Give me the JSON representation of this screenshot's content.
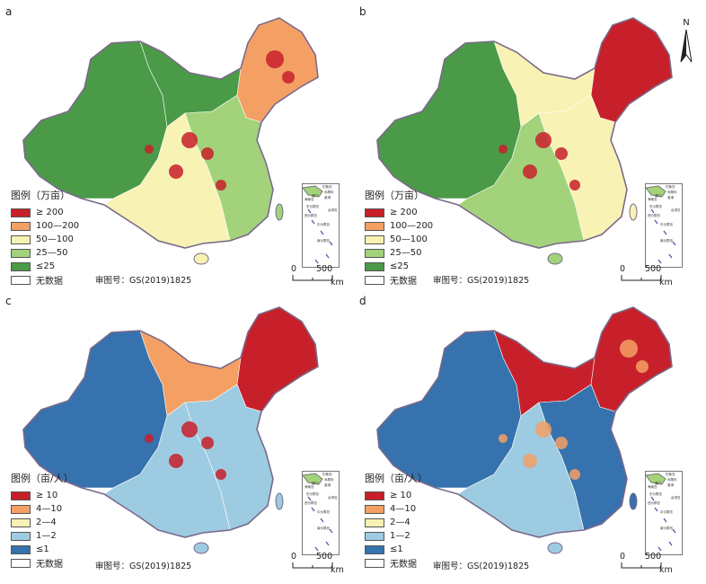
{
  "north_label": "N",
  "panels": [
    {
      "letter": "a",
      "legend_title": "图例（万亩）",
      "legend": [
        "≥ 200",
        "100—200",
        "50—100",
        "25—50",
        "≤25",
        "无数据"
      ],
      "review": "审图号：GS(2019)1825",
      "scale_zero": "0",
      "scale_max": "500",
      "scale_unit": "km",
      "inset_labels": [
        "海南岛",
        "钓鱼岛",
        "赤尾屿",
        "东沙群岛",
        "西沙群岛",
        "中沙群岛",
        "南沙群岛",
        "澳门",
        "香港",
        "台湾岛"
      ]
    },
    {
      "letter": "b",
      "legend_title": "图例（万亩）",
      "legend": [
        "≥ 200",
        "100—200",
        "50—100",
        "25—50",
        "≤25",
        "无数据"
      ],
      "review": "审图号：GS(2019)1825",
      "scale_zero": "0",
      "scale_max": "500",
      "scale_unit": "km",
      "inset_labels": [
        "海南岛",
        "钓鱼岛",
        "赤尾屿",
        "东沙群岛",
        "西沙群岛",
        "中沙群岛",
        "南沙群岛",
        "澳门",
        "香港",
        "台湾岛"
      ]
    },
    {
      "letter": "c",
      "legend_title": "图例（亩/人）",
      "legend": [
        "≥ 10",
        "4—10",
        "2—4",
        "1—2",
        "≤1",
        "无数据"
      ],
      "review": "审图号：GS(2019)1825",
      "scale_zero": "0",
      "scale_max": "500",
      "scale_unit": "km",
      "inset_labels": [
        "海南岛",
        "钓鱼岛",
        "赤尾屿",
        "东沙群岛",
        "西沙群岛",
        "中沙群岛",
        "南沙群岛",
        "澳门",
        "香港",
        "台湾岛"
      ]
    },
    {
      "letter": "d",
      "legend_title": "图例（亩/人）",
      "legend": [
        "≥ 10",
        "4—10",
        "2—4",
        "1—2",
        "≤1",
        "无数据"
      ],
      "review": "审图号：GS(2019)1825",
      "scale_zero": "0",
      "scale_max": "500",
      "scale_unit": "km",
      "inset_labels": [
        "海南岛",
        "钓鱼岛",
        "赤尾屿",
        "东沙群岛",
        "西沙群岛",
        "中沙群岛",
        "南沙群岛",
        "澳门",
        "香港",
        "台湾岛"
      ]
    }
  ],
  "colors": {
    "area": [
      "#c8202a",
      "#f4a064",
      "#f8f2b4",
      "#a2d37a",
      "#4a9a48",
      "#ffffff"
    ],
    "per_capita": [
      "#c8202a",
      "#f4a064",
      "#f8f2b4",
      "#9dcbe2",
      "#3672ad",
      "#ffffff"
    ]
  },
  "panel_fills": {
    "a": {
      "west": "#4a9a48",
      "north": "#4a9a48",
      "northeast": "#f4a064",
      "east": "#a2d37a",
      "south": "#f8f2b4",
      "hotspots": "#c8202a"
    },
    "b": {
      "west": "#4a9a48",
      "north": "#f8f2b4",
      "northeast": "#c8202a",
      "east": "#f8f2b4",
      "south": "#a2d37a",
      "hotspots": "#c8202a"
    },
    "c": {
      "west": "#3672ad",
      "north": "#f4a064",
      "northeast": "#c8202a",
      "east": "#9dcbe2",
      "south": "#9dcbe2",
      "hotspots": "#c8202a"
    },
    "d": {
      "west": "#3672ad",
      "north": "#c8202a",
      "northeast": "#c8202a",
      "east": "#3672ad",
      "south": "#9dcbe2",
      "hotspots": "#f4a064"
    }
  }
}
